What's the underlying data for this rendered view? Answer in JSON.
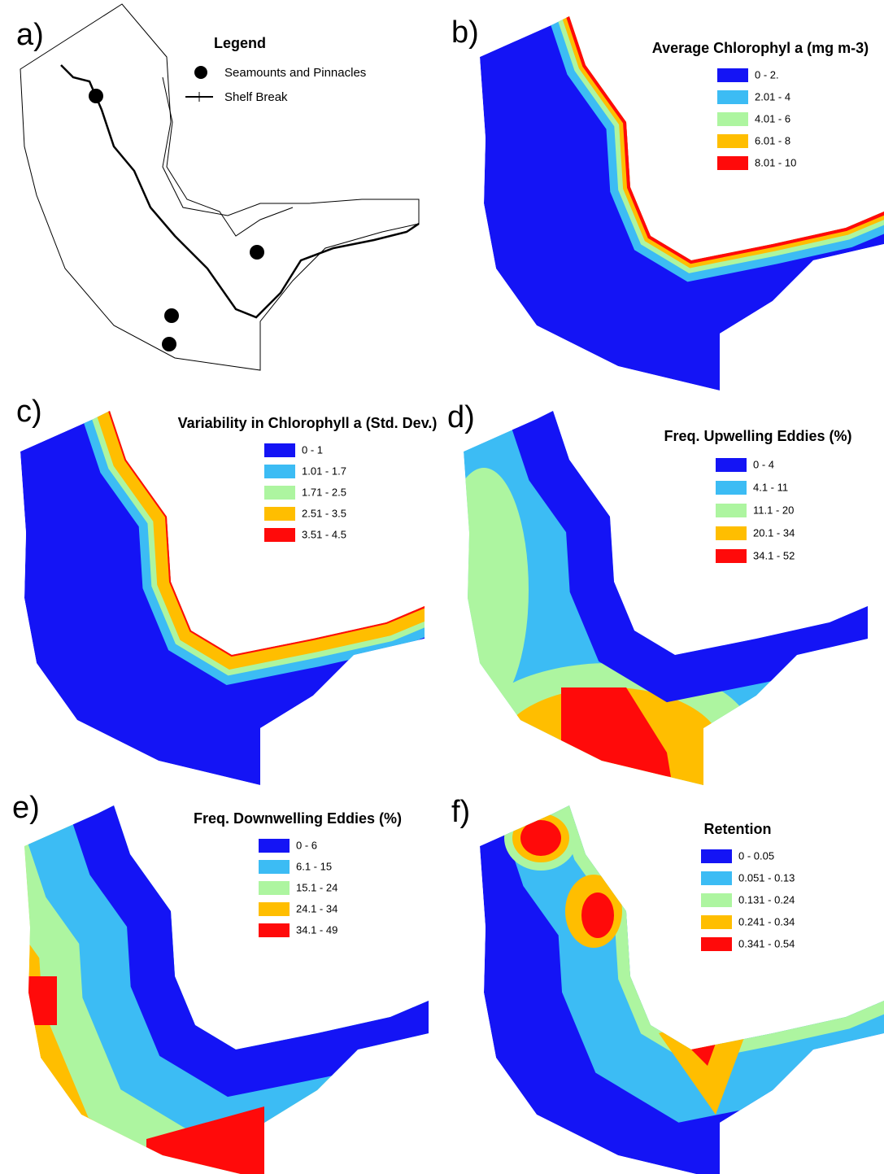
{
  "panels": [
    {
      "label": "a)",
      "legend_title": "Legend",
      "items": [
        {
          "label": "Seamounts and Pinnacles"
        },
        {
          "label": "Shelf Break"
        }
      ]
    },
    {
      "label": "b)",
      "legend_title": "Average Chlorophyl a (mg m-3)",
      "items": [
        {
          "label": "0 - 2.",
          "color": "#1414f5"
        },
        {
          "label": "2.01 - 4",
          "color": "#3cbcf4"
        },
        {
          "label": "4.01 - 6",
          "color": "#adf5a0"
        },
        {
          "label": "6.01 - 8",
          "color": "#ffbe00"
        },
        {
          "label": "8.01 - 10",
          "color": "#ff0a0a"
        }
      ]
    },
    {
      "label": "c)",
      "legend_title": "Variability in Chlorophyll a (Std. Dev.)",
      "items": [
        {
          "label": "0 - 1",
          "color": "#1414f5"
        },
        {
          "label": "1.01 - 1.7",
          "color": "#3cbcf4"
        },
        {
          "label": "1.71 - 2.5",
          "color": "#adf5a0"
        },
        {
          "label": "2.51 - 3.5",
          "color": "#ffbe00"
        },
        {
          "label": "3.51 - 4.5",
          "color": "#ff0a0a"
        }
      ]
    },
    {
      "label": "d)",
      "legend_title": "Freq. Upwelling Eddies (%)",
      "items": [
        {
          "label": "0 - 4",
          "color": "#1414f5"
        },
        {
          "label": "4.1 - 11",
          "color": "#3cbcf4"
        },
        {
          "label": "11.1 - 20",
          "color": "#adf5a0"
        },
        {
          "label": "20.1 - 34",
          "color": "#ffbe00"
        },
        {
          "label": "34.1 - 52",
          "color": "#ff0a0a"
        }
      ]
    },
    {
      "label": "e)",
      "legend_title": "Freq. Downwelling Eddies (%)",
      "items": [
        {
          "label": "0 - 6",
          "color": "#1414f5"
        },
        {
          "label": "6.1 - 15",
          "color": "#3cbcf4"
        },
        {
          "label": "15.1 - 24",
          "color": "#adf5a0"
        },
        {
          "label": "24.1 - 34",
          "color": "#ffbe00"
        },
        {
          "label": "34.1 - 49",
          "color": "#ff0a0a"
        }
      ]
    },
    {
      "label": "f)",
      "legend_title": "Retention",
      "items": [
        {
          "label": "0 - 0.05",
          "color": "#1414f5"
        },
        {
          "label": "0.051 - 0.13",
          "color": "#3cbcf4"
        },
        {
          "label": "0.131 - 0.24",
          "color": "#adf5a0"
        },
        {
          "label": "0.241 - 0.34",
          "color": "#ffbe00"
        },
        {
          "label": "0.341 - 0.54",
          "color": "#ff0a0a"
        }
      ]
    }
  ]
}
